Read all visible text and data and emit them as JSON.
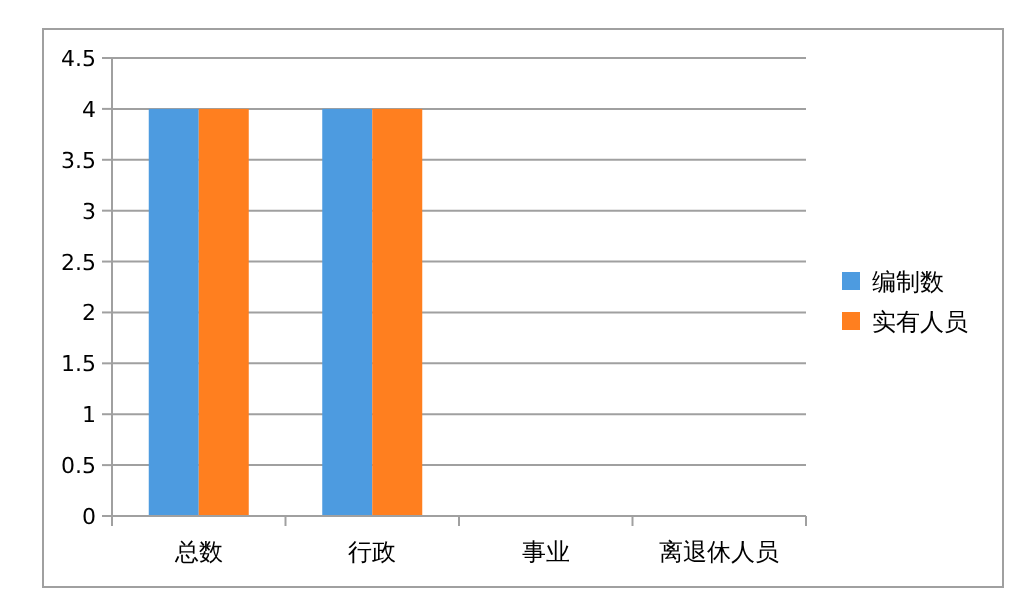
{
  "chart_data": {
    "type": "bar",
    "categories": [
      "总数",
      "行政",
      "事业",
      "离退休人员"
    ],
    "series": [
      {
        "name": "编制数",
        "color": "#4d9be0",
        "values": [
          4,
          4,
          0,
          0
        ]
      },
      {
        "name": "实有人员",
        "color": "#ff7f1f",
        "values": [
          4,
          4,
          0,
          0
        ]
      }
    ],
    "ylim": [
      0,
      4.5
    ],
    "yticks": [
      0,
      0.5,
      1,
      1.5,
      2,
      2.5,
      3,
      3.5,
      4,
      4.5
    ],
    "grid": "y",
    "legend": "right"
  }
}
